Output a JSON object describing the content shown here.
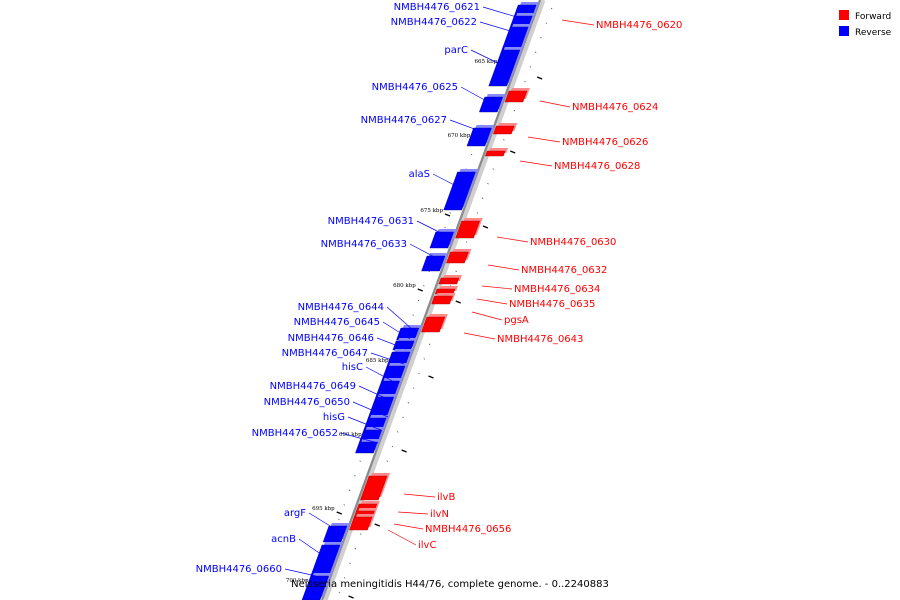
{
  "caption": "Neisseria meningitidis H44/76, complete genome. - 0..2240883",
  "legend": {
    "forward_label": "Forward",
    "reverse_label": "Reverse",
    "forward_color": "#ff0000",
    "reverse_color": "#0000ff"
  },
  "ticks": [
    "665 kbp",
    "670 kbp",
    "675 kbp",
    "680 kbp",
    "685 kbp",
    "690 kbp",
    "695 kbp",
    "700 kbp"
  ],
  "reverse_genes": [
    "NMBH4476_0621",
    "NMBH4476_0622",
    "parC",
    "NMBH4476_0625",
    "NMBH4476_0627",
    "alaS",
    "NMBH4476_0631",
    "NMBH4476_0633",
    "NMBH4476_0644",
    "NMBH4476_0645",
    "NMBH4476_0646",
    "NMBH4476_0647",
    "hisC",
    "NMBH4476_0649",
    "NMBH4476_0650",
    "hisG",
    "NMBH4476_0652",
    "argF",
    "acnB",
    "NMBH4476_0660"
  ],
  "forward_genes": [
    "NMBH4476_0620",
    "NMBH4476_0624",
    "NMBH4476_0626",
    "NMBH4476_0628",
    "NMBH4476_0630",
    "NMBH4476_0632",
    "NMBH4476_0634",
    "NMBH4476_0635",
    "pgsA",
    "NMBH4476_0643",
    "ilvB",
    "ilvN",
    "NMBH4476_0656",
    "ilvC"
  ]
}
